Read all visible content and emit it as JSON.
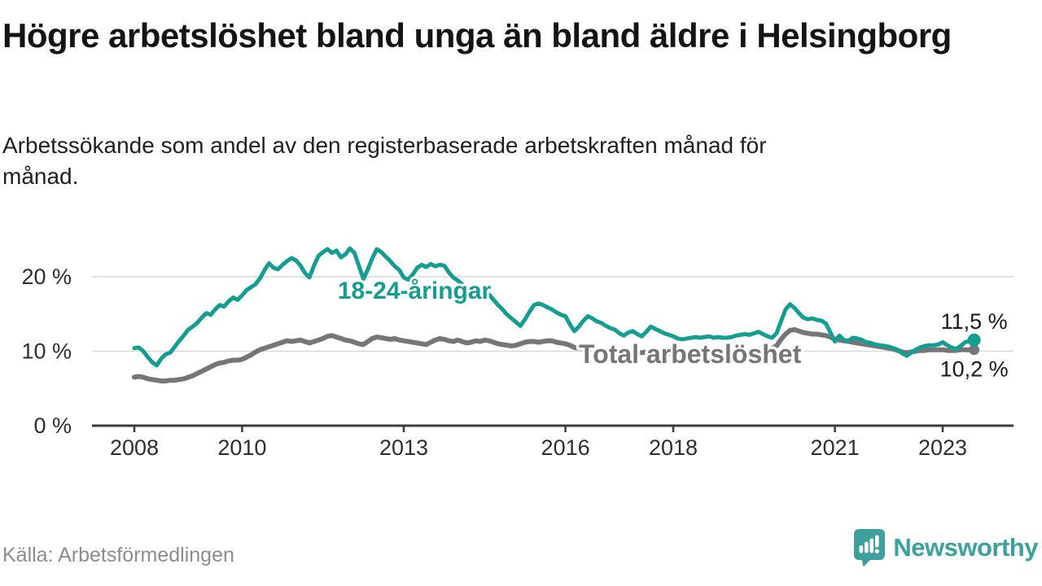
{
  "header": {
    "title": "Högre arbetslöshet bland unga än bland äldre i Helsingborg",
    "subtitle": "Arbetssökande som andel av den registerbaserade arbetskraften månad för månad."
  },
  "footer": {
    "source": "Källa: Arbetsförmedlingen",
    "logo_text": "Newsworthy"
  },
  "colors": {
    "young": "#149e91",
    "total": "#76757a",
    "grid": "#d8d8d8",
    "axis": "#3c3c3c",
    "tick_label": "#2e2e2e",
    "end_label": "#1a1a1a",
    "logo": "#3ea09e",
    "background": "#ffffff"
  },
  "chart_data": {
    "type": "line",
    "title": "Högre arbetslöshet bland unga än bland äldre i Helsingborg",
    "subtitle": "Arbetssökande som andel av den registerbaserade arbetskraften månad för månad.",
    "unit": "%",
    "xlabel": "",
    "ylabel": "",
    "ylim": [
      0,
      24
    ],
    "grid": "horizontal",
    "legend": "inline-labels",
    "x_start_year": 2008,
    "points_per_year": 12,
    "x_ticks": [
      {
        "label": "2008",
        "year": 2008
      },
      {
        "label": "2010",
        "year": 2010
      },
      {
        "label": "2013",
        "year": 2013
      },
      {
        "label": "2016",
        "year": 2016
      },
      {
        "label": "2018",
        "year": 2018
      },
      {
        "label": "2021",
        "year": 2021
      },
      {
        "label": "2023",
        "year": 2023
      }
    ],
    "y_ticks": [
      {
        "label": "0 %",
        "value": 0
      },
      {
        "label": "10 %",
        "value": 10
      },
      {
        "label": "20 %",
        "value": 20
      }
    ],
    "series": [
      {
        "name": "18-24-åringar",
        "label": "18-24-åringar",
        "end_label": "11,5 %",
        "color": "#149e91",
        "values": [
          10.4,
          10.5,
          10.0,
          9.2,
          8.5,
          8.1,
          9.0,
          9.6,
          9.8,
          10.6,
          11.4,
          12.1,
          12.9,
          13.3,
          13.8,
          14.5,
          15.1,
          14.9,
          15.6,
          16.2,
          16.0,
          16.7,
          17.2,
          16.9,
          17.5,
          18.2,
          18.6,
          19.0,
          19.8,
          20.9,
          21.8,
          21.2,
          21.0,
          21.6,
          22.1,
          22.5,
          22.2,
          21.5,
          20.5,
          19.9,
          21.5,
          22.8,
          23.3,
          23.7,
          23.2,
          23.5,
          22.6,
          23.0,
          23.8,
          23.2,
          21.5,
          19.7,
          21.0,
          22.5,
          23.7,
          23.3,
          22.7,
          22.1,
          21.4,
          20.9,
          19.9,
          19.6,
          20.3,
          21.2,
          21.6,
          21.3,
          21.7,
          21.4,
          21.6,
          21.5,
          20.6,
          19.9,
          19.5,
          19.0,
          18.4,
          18.0,
          17.7,
          17.4,
          17.8,
          17.6,
          16.9,
          16.2,
          15.6,
          14.9,
          14.4,
          13.9,
          13.4,
          14.3,
          15.3,
          16.2,
          16.4,
          16.2,
          15.9,
          15.6,
          15.2,
          14.9,
          14.7,
          13.6,
          12.7,
          13.3,
          14.1,
          14.7,
          14.4,
          14.0,
          13.8,
          13.4,
          13.1,
          12.9,
          12.4,
          12.1,
          12.5,
          12.7,
          12.3,
          12.0,
          12.6,
          13.3,
          13.0,
          12.7,
          12.4,
          12.2,
          12.0,
          11.7,
          11.6,
          11.7,
          11.8,
          11.9,
          11.8,
          11.9,
          12.0,
          11.8,
          11.9,
          11.8,
          11.8,
          11.9,
          12.1,
          12.2,
          12.3,
          12.2,
          12.4,
          12.6,
          12.3,
          12.0,
          11.8,
          12.4,
          14.0,
          15.6,
          16.3,
          15.8,
          15.1,
          14.5,
          14.3,
          14.4,
          14.2,
          14.1,
          13.7,
          12.5,
          11.3,
          12.1,
          11.5,
          11.4,
          11.8,
          11.7,
          11.5,
          11.2,
          11.1,
          10.9,
          10.8,
          10.7,
          10.6,
          10.4,
          10.2,
          9.7,
          9.4,
          9.8,
          10.2,
          10.5,
          10.7,
          10.8,
          10.8,
          10.9,
          11.2,
          10.8,
          10.5,
          10.3,
          10.7,
          11.2,
          11.4,
          11.5
        ]
      },
      {
        "name": "Total arbetslöshet",
        "label": "Total arbetslöshet",
        "end_label": "10,2 %",
        "color": "#76757a",
        "values": [
          6.5,
          6.6,
          6.5,
          6.3,
          6.2,
          6.1,
          6.0,
          6.0,
          6.1,
          6.1,
          6.2,
          6.3,
          6.5,
          6.7,
          7.0,
          7.3,
          7.6,
          7.9,
          8.2,
          8.4,
          8.5,
          8.7,
          8.8,
          8.8,
          8.9,
          9.2,
          9.5,
          9.9,
          10.2,
          10.4,
          10.6,
          10.8,
          11.0,
          11.2,
          11.4,
          11.3,
          11.4,
          11.5,
          11.3,
          11.1,
          11.3,
          11.5,
          11.7,
          12.0,
          12.1,
          11.9,
          11.7,
          11.5,
          11.4,
          11.2,
          11.0,
          10.9,
          11.3,
          11.7,
          11.9,
          11.8,
          11.7,
          11.6,
          11.7,
          11.5,
          11.4,
          11.3,
          11.2,
          11.1,
          11.0,
          10.9,
          11.2,
          11.5,
          11.7,
          11.6,
          11.4,
          11.3,
          11.5,
          11.3,
          11.1,
          11.2,
          11.4,
          11.3,
          11.5,
          11.4,
          11.2,
          11.0,
          10.9,
          10.8,
          10.7,
          10.8,
          11.0,
          11.2,
          11.3,
          11.3,
          11.2,
          11.3,
          11.4,
          11.4,
          11.2,
          11.1,
          11.0,
          10.8,
          10.5,
          10.4,
          10.3,
          10.3,
          10.2,
          10.2,
          10.1,
          10.1,
          10.0,
          10.0,
          10.1,
          10.0,
          9.9,
          9.9,
          9.8,
          9.8,
          9.9,
          9.9,
          9.8,
          9.8,
          9.7,
          9.7,
          9.8,
          9.7,
          9.7,
          9.6,
          9.7,
          9.7,
          9.8,
          9.8,
          9.7,
          9.8,
          9.8,
          9.9,
          9.8,
          9.9,
          9.9,
          10.0,
          10.0,
          9.9,
          10.0,
          10.1,
          10.2,
          10.2,
          10.4,
          10.7,
          11.6,
          12.3,
          12.8,
          12.9,
          12.7,
          12.5,
          12.4,
          12.3,
          12.3,
          12.2,
          12.1,
          11.9,
          11.6,
          11.5,
          11.4,
          11.3,
          11.2,
          11.1,
          11.0,
          10.9,
          10.8,
          10.7,
          10.6,
          10.5,
          10.4,
          10.3,
          10.1,
          9.9,
          9.8,
          9.9,
          10.0,
          10.1,
          10.1,
          10.2,
          10.2,
          10.2,
          10.2,
          10.1,
          10.1,
          10.1,
          10.2,
          10.2,
          10.2,
          10.2
        ]
      }
    ]
  }
}
